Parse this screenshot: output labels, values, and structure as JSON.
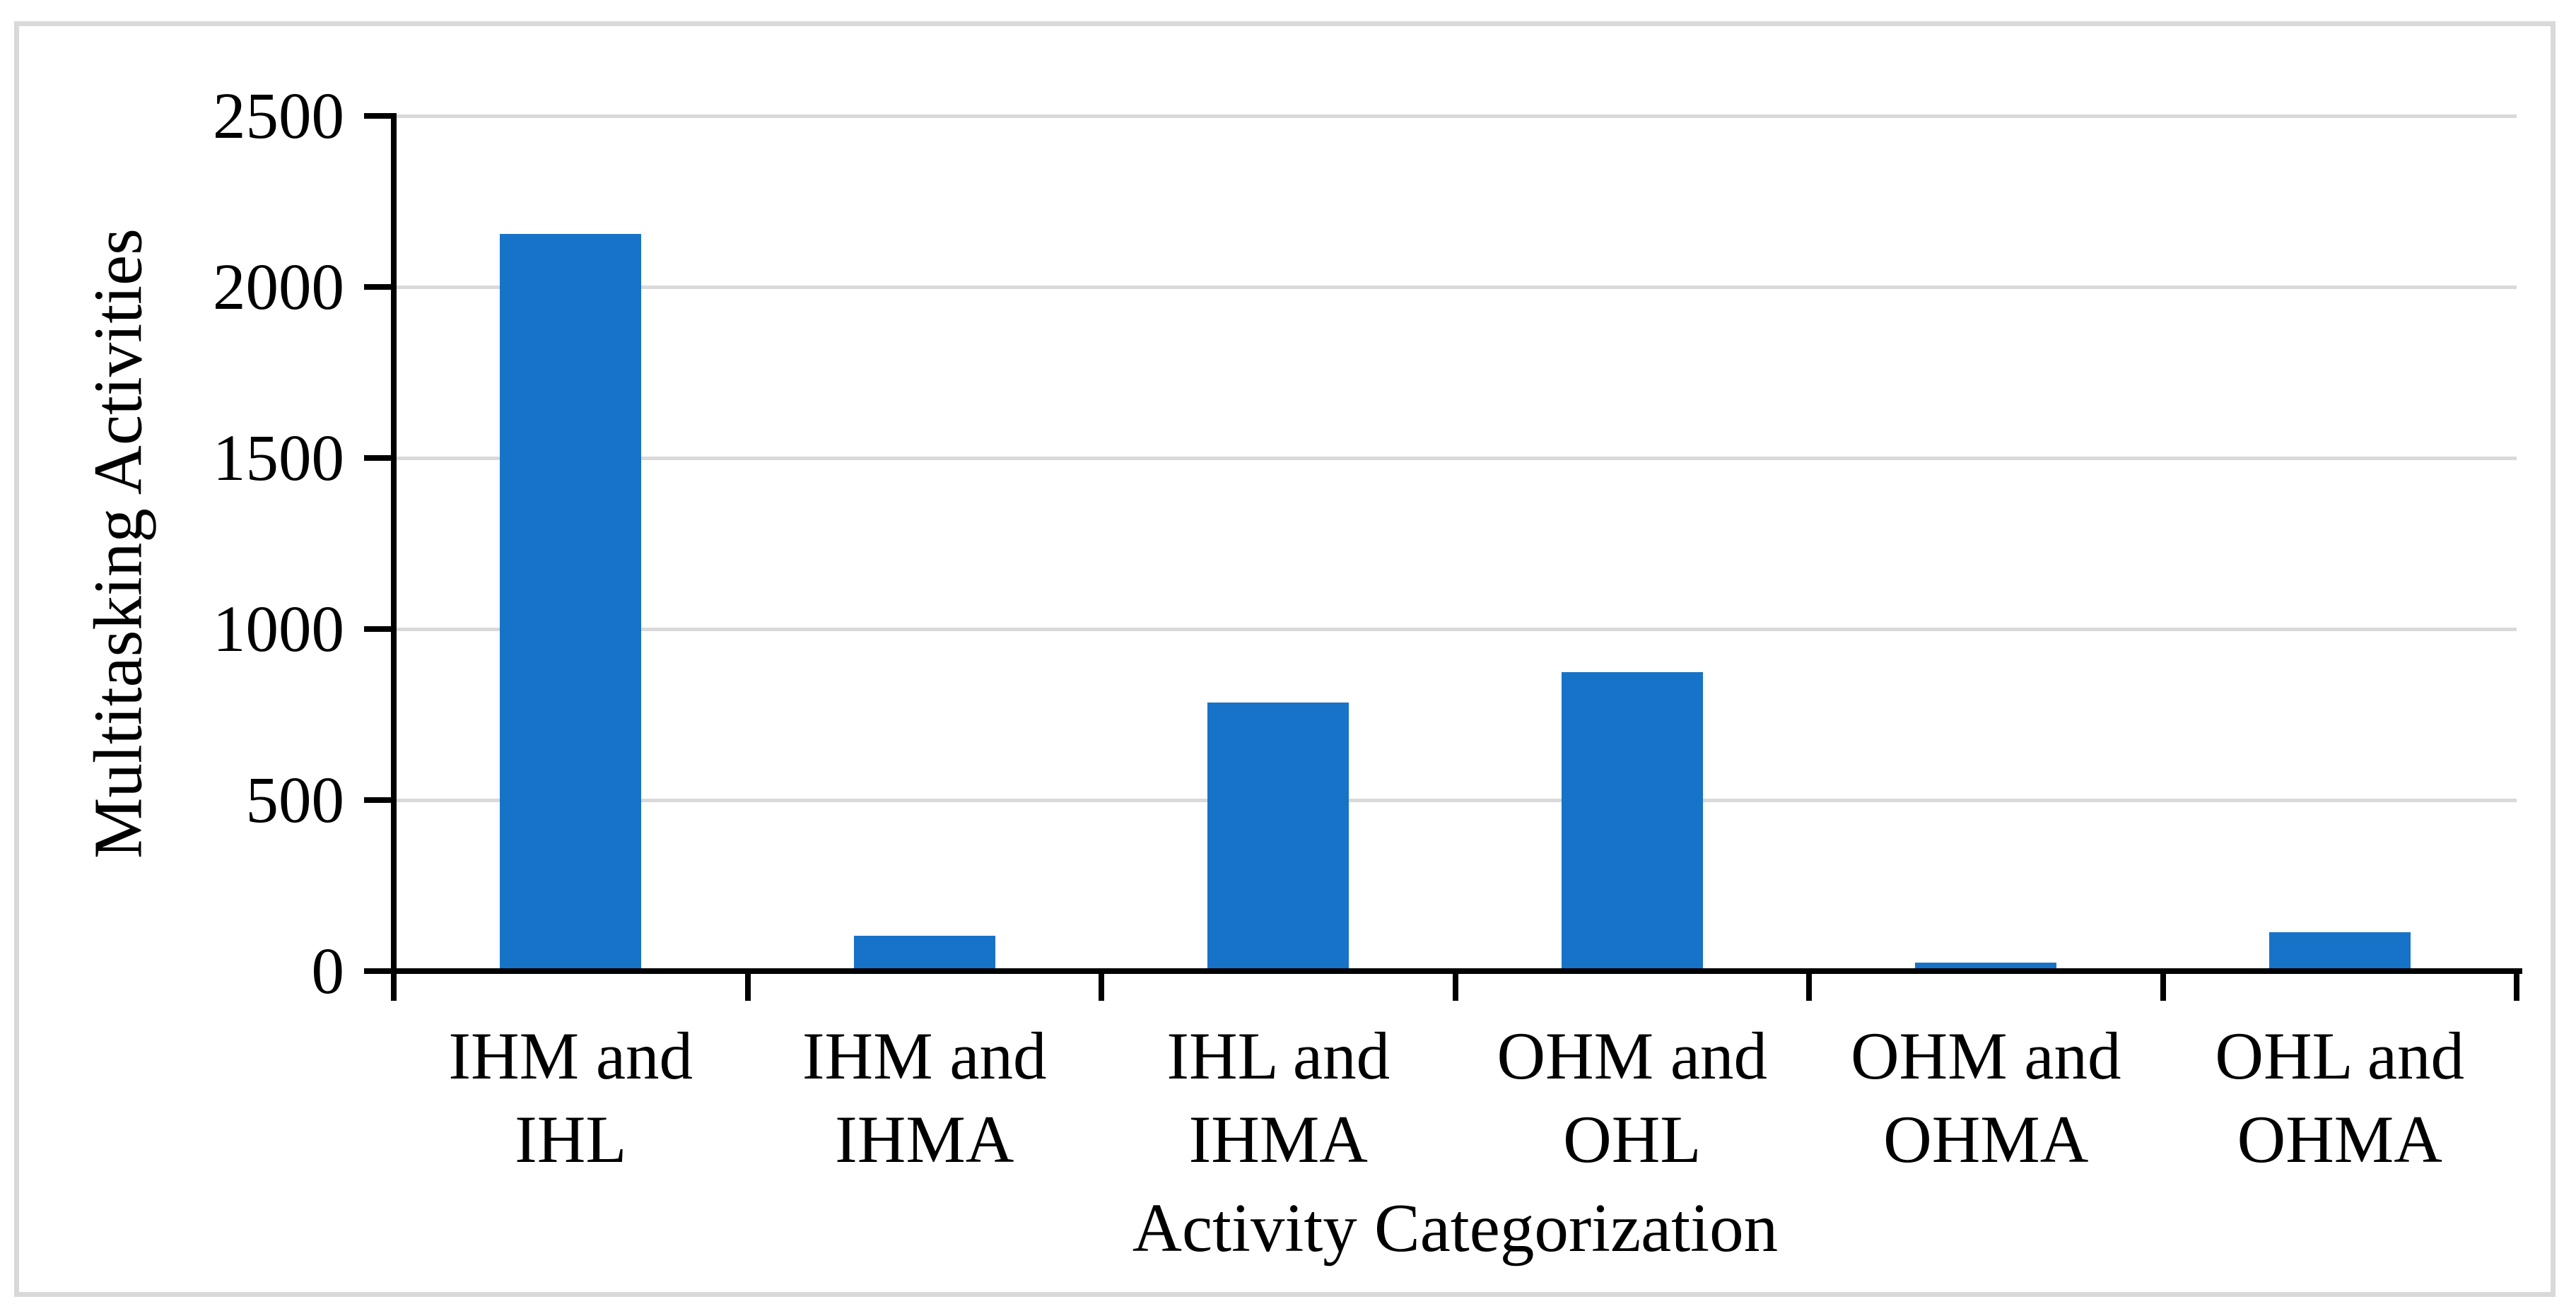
{
  "chart_data": {
    "type": "bar",
    "title": "",
    "categories": [
      "IHM and IHL",
      "IHM and IHMA",
      "IHL and IHMA",
      "OHM and OHL",
      "OHM and OHMA",
      "OHL and OHMA"
    ],
    "category_label_lines": [
      [
        "IHM and",
        "IHL"
      ],
      [
        "IHM and",
        "IHMA"
      ],
      [
        "IHL and",
        "IHMA"
      ],
      [
        "OHM and",
        "OHL"
      ],
      [
        "OHM and",
        "OHMA"
      ],
      [
        "OHL and",
        "OHMA"
      ]
    ],
    "values": [
      2150,
      100,
      780,
      870,
      20,
      110
    ],
    "xlabel": "Activity Categorization",
    "ylabel": "Multitasking Activities",
    "y_ticks": [
      0,
      500,
      1000,
      1500,
      2000,
      2500
    ],
    "ylim": [
      0,
      2500
    ],
    "grid": true,
    "legend": false,
    "bar_color": "#1773C8",
    "gridline_color": "#D9D9D9",
    "frame_color": "#D9D9D9",
    "axis_color": "#000000",
    "text_color": "#000000",
    "background": "#FFFFFF"
  }
}
